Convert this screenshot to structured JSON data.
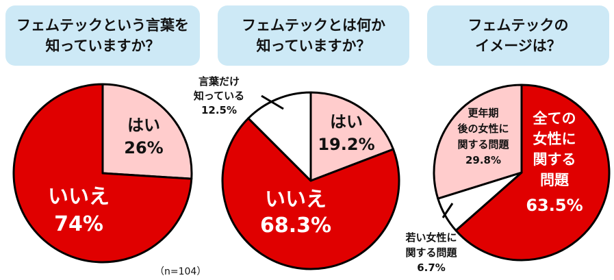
{
  "headers": [
    {
      "line1": "フェムテックという言葉を",
      "line2": "知っていますか？"
    },
    {
      "line1": "フェムテックとは何か",
      "line2": "知っていますか？"
    },
    {
      "line1": "フェムテックの",
      "line2": "イメージは？"
    }
  ],
  "note": "（n=104）",
  "colors": {
    "red": "#e00000",
    "pink": "#ffcccc",
    "white": "#ffffff",
    "outline": "#000000",
    "header_bg": "#cde9f6"
  },
  "chart_data": [
    {
      "type": "pie",
      "title": "フェムテックという言葉を知っていますか？",
      "slices": [
        {
          "label": "はい",
          "value": 26,
          "display": "26%",
          "color": "#ffcccc"
        },
        {
          "label": "いいえ",
          "value": 74,
          "display": "74%",
          "color": "#e00000"
        }
      ]
    },
    {
      "type": "pie",
      "title": "フェムテックとは何か知っていますか？",
      "slices": [
        {
          "label": "はい",
          "value": 19.2,
          "display": "19.2%",
          "color": "#ffcccc"
        },
        {
          "label": "いいえ",
          "value": 68.3,
          "display": "68.3%",
          "color": "#e00000"
        },
        {
          "label": "言葉だけ知っている",
          "value": 12.5,
          "display": "12.5%",
          "color": "#ffffff"
        }
      ]
    },
    {
      "type": "pie",
      "title": "フェムテックのイメージは？",
      "slices": [
        {
          "label": "全ての女性に関する問題",
          "value": 63.5,
          "display": "63.5%",
          "color": "#e00000"
        },
        {
          "label": "若い女性に関する問題",
          "value": 6.7,
          "display": "6.7%",
          "color": "#ffffff"
        },
        {
          "label": "更年期後の女性に関する問題",
          "value": 29.8,
          "display": "29.8%",
          "color": "#ffcccc"
        }
      ]
    }
  ],
  "labels": {
    "c1_yes": [
      "はい",
      "26%"
    ],
    "c1_no": [
      "いいえ",
      "74%"
    ],
    "c2_yes": [
      "はい",
      "19.2%"
    ],
    "c2_no": [
      "いいえ",
      "68.3%"
    ],
    "c2_word": [
      "言葉だけ",
      "知っている",
      "12.5%"
    ],
    "c3_all": [
      "全ての",
      "女性に",
      "関する",
      "問題",
      "63.5%"
    ],
    "c3_young": [
      "若い女性に",
      "関する問題",
      "6.7%"
    ],
    "c3_meno": [
      "更年期",
      "後の女性に",
      "関する問題",
      "29.8%"
    ]
  }
}
